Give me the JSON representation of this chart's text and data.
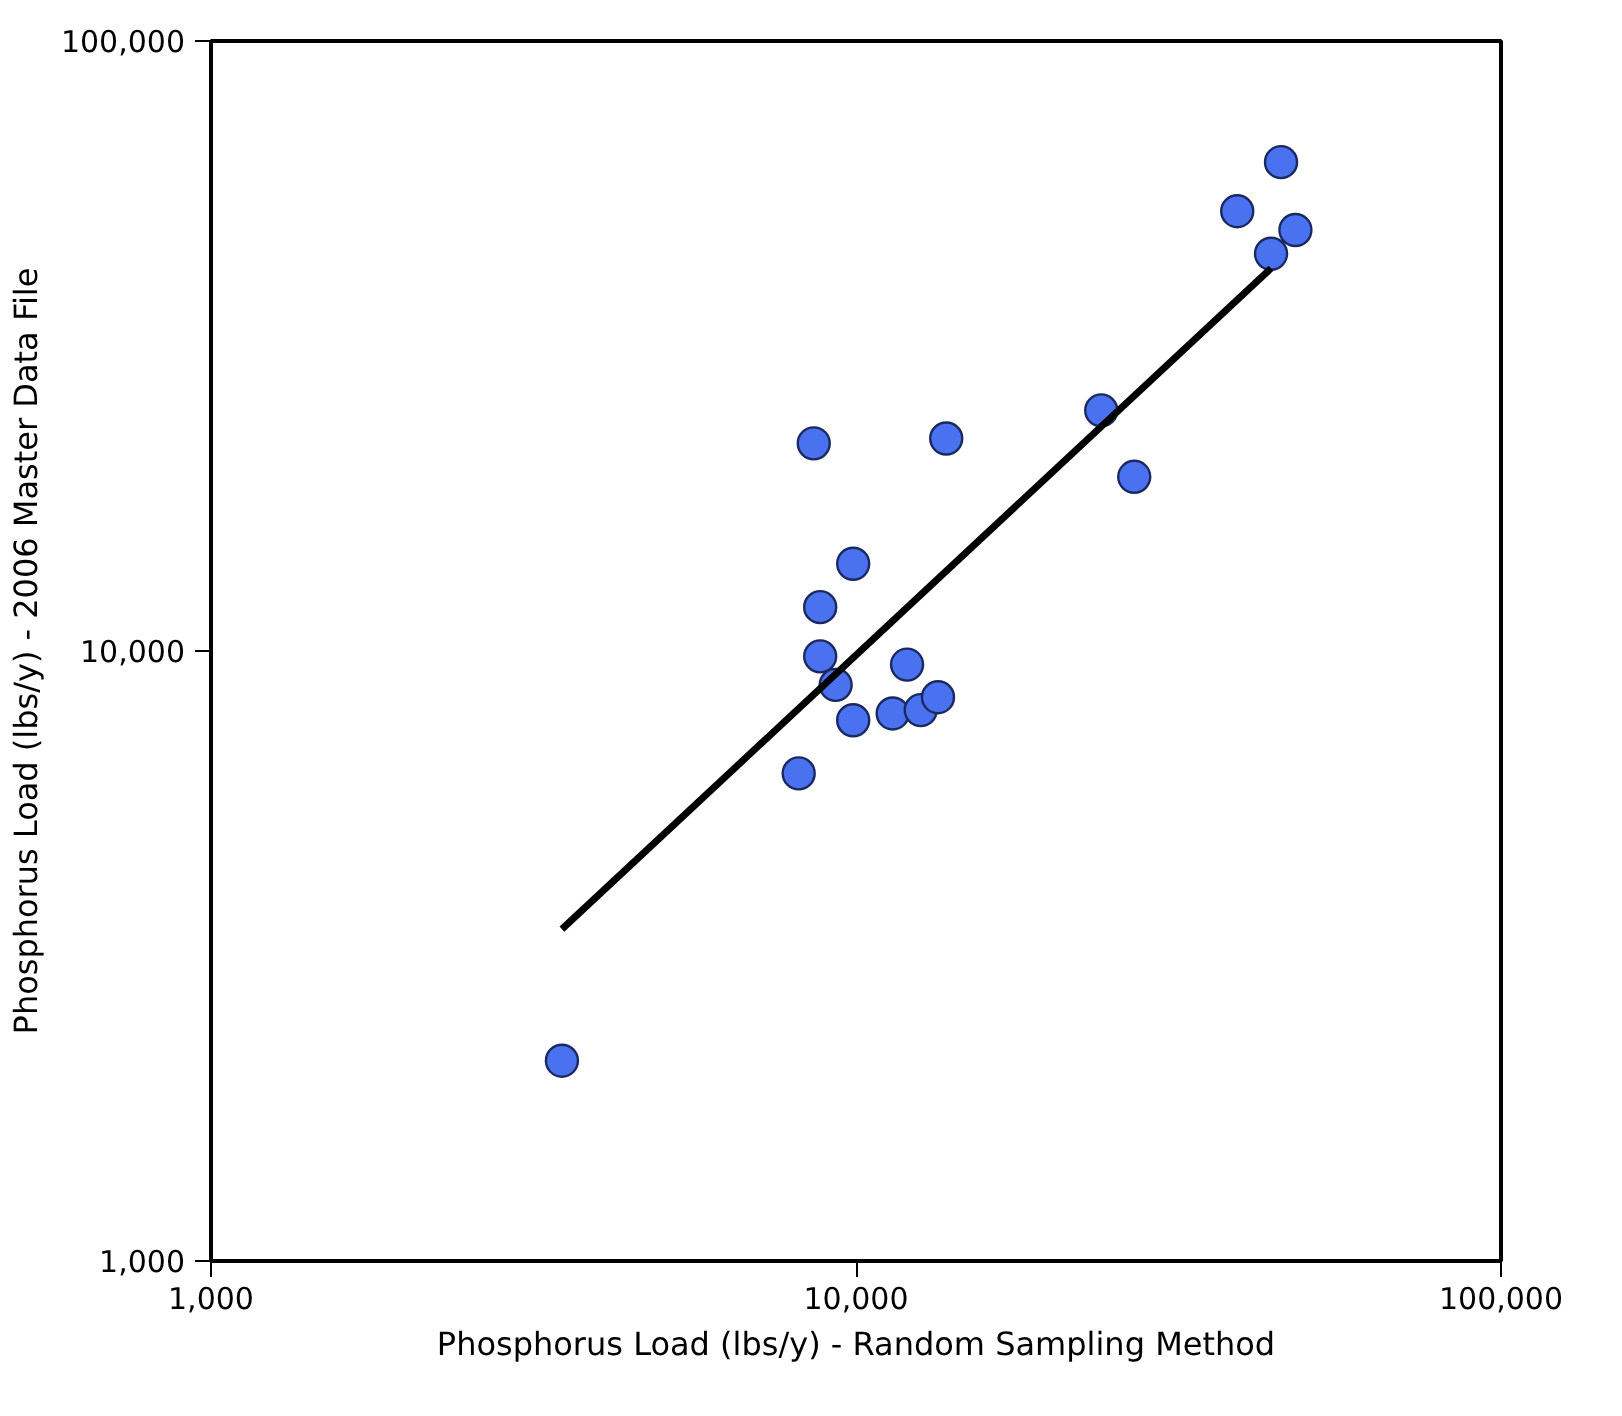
{
  "chart_data": {
    "type": "scatter",
    "xlabel": "Phosphorus Load (lbs/y) - Random Sampling Method",
    "ylabel": "Phosphorus Load (lbs/y) - 2006 Master Data File",
    "log": "xy",
    "grid": false,
    "marker": "circle",
    "xlim": [
      1000,
      100000
    ],
    "ylim": [
      1000,
      100000
    ],
    "xticks": [
      {
        "value": 1000,
        "label": "1,000"
      },
      {
        "value": 10000,
        "label": "10,000"
      },
      {
        "value": 100000,
        "label": "100,000"
      }
    ],
    "yticks": [
      {
        "value": 1000,
        "label": "1,000"
      },
      {
        "value": 10000,
        "label": "10,000"
      },
      {
        "value": 100000,
        "label": "100,000"
      }
    ],
    "series": [
      {
        "color": "#4a72f0",
        "x": [
          3500,
          8150,
          8600,
          8800,
          8800,
          9300,
          9900,
          9900,
          11400,
          12000,
          12600,
          13400,
          13800,
          24000,
          27000,
          39000,
          44000,
          45600,
          48000
        ],
        "values": [
          2130,
          6300,
          21900,
          11800,
          9800,
          8800,
          7700,
          13900,
          7900,
          9500,
          8000,
          8400,
          22300,
          24800,
          19300,
          52600,
          44800,
          63300,
          49000
        ]
      },
      {
        "type": "line",
        "color": "#000000",
        "line_style": "solid",
        "marker": "none",
        "x": [
          3500,
          44000
        ],
        "values": [
          3500,
          42400
        ]
      }
    ]
  }
}
